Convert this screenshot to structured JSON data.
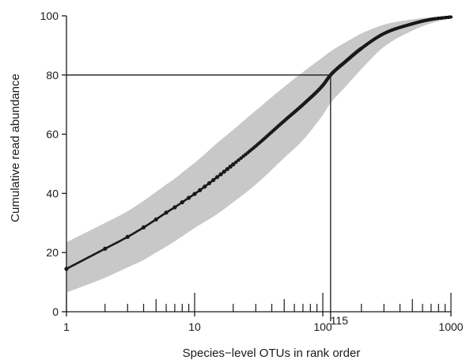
{
  "chart_data": {
    "type": "line",
    "title": "",
    "xlabel": "Species−level OTUs in rank order",
    "ylabel": "Cumulative read abundance",
    "x_scale": "log",
    "xlim": [
      1,
      1000
    ],
    "ylim": [
      0,
      100
    ],
    "x_ticks": [
      1,
      10,
      100,
      1000
    ],
    "x_tick_labels": [
      "1",
      "10",
      "100",
      "1000"
    ],
    "y_ticks": [
      0,
      20,
      40,
      60,
      80,
      100
    ],
    "y_tick_labels": [
      "0",
      "20",
      "40",
      "60",
      "80",
      "100"
    ],
    "grid": false,
    "legend": "none",
    "series": [
      {
        "x": [
          1,
          2,
          3,
          4,
          5,
          6,
          7,
          8,
          9,
          10,
          15,
          20,
          30,
          50,
          70,
          100,
          115,
          150,
          200,
          300,
          500,
          700,
          1000
        ],
        "y": [
          14.5,
          21.3,
          25.3,
          28.5,
          31.2,
          33.5,
          35.3,
          37.0,
          38.5,
          39.8,
          45.5,
          49.8,
          56.0,
          64.5,
          70.0,
          76.5,
          80.0,
          84.5,
          89.0,
          94.0,
          97.3,
          98.8,
          99.6
        ],
        "lower": [
          6.5,
          11.5,
          15.0,
          17.5,
          20.0,
          22.0,
          23.8,
          25.5,
          27.0,
          28.3,
          33.0,
          37.0,
          43.0,
          52.0,
          58.0,
          66.5,
          70.5,
          76.0,
          82.0,
          89.5,
          95.0,
          97.5,
          99.3
        ],
        "upper": [
          23.5,
          30.0,
          34.0,
          37.5,
          40.5,
          43.0,
          45.0,
          47.0,
          48.8,
          50.3,
          57.0,
          61.5,
          68.0,
          76.0,
          81.0,
          86.0,
          88.0,
          91.0,
          94.0,
          97.0,
          98.8,
          99.5,
          99.8
        ]
      }
    ],
    "annotation": {
      "x": 115,
      "y": 80,
      "label": "115"
    }
  }
}
